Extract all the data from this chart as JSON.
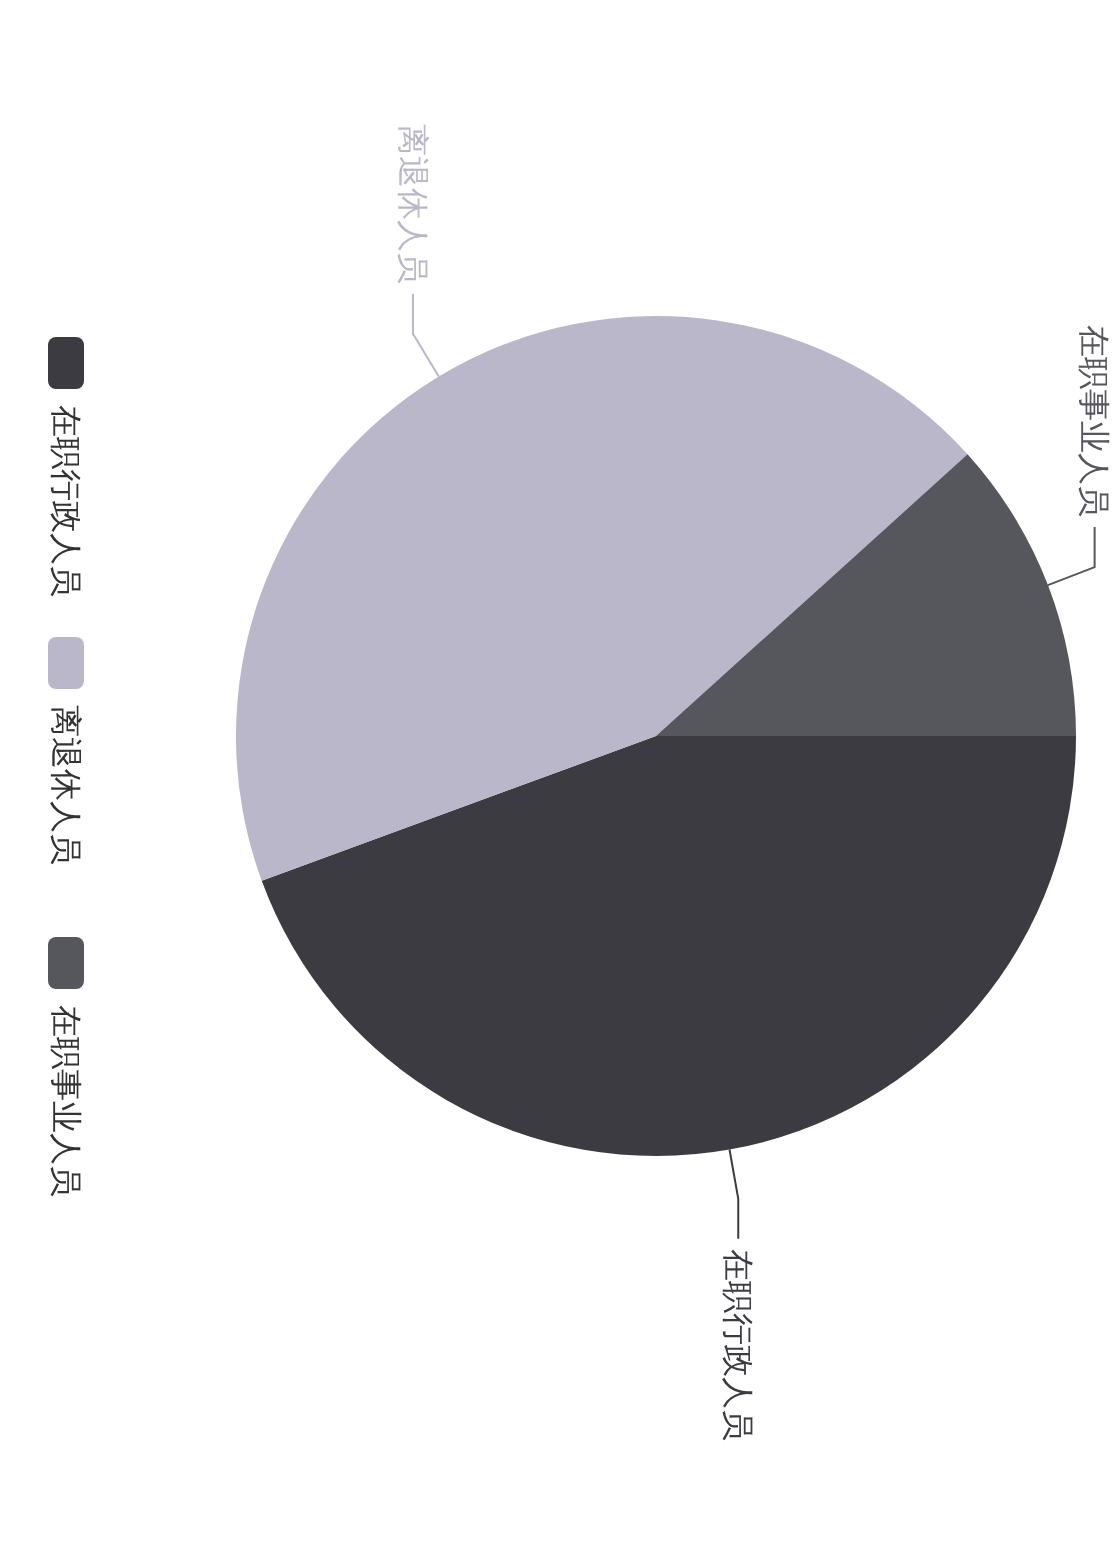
{
  "chart_data": {
    "type": "pie",
    "categories": [
      "在职行政人员",
      "离退休人员",
      "在职事业人员"
    ],
    "values": [
      44.4,
      43.9,
      11.7
    ],
    "colors": [
      "#3b3b41",
      "#b9b7c9",
      "#56565d"
    ],
    "legend": "bottom"
  }
}
